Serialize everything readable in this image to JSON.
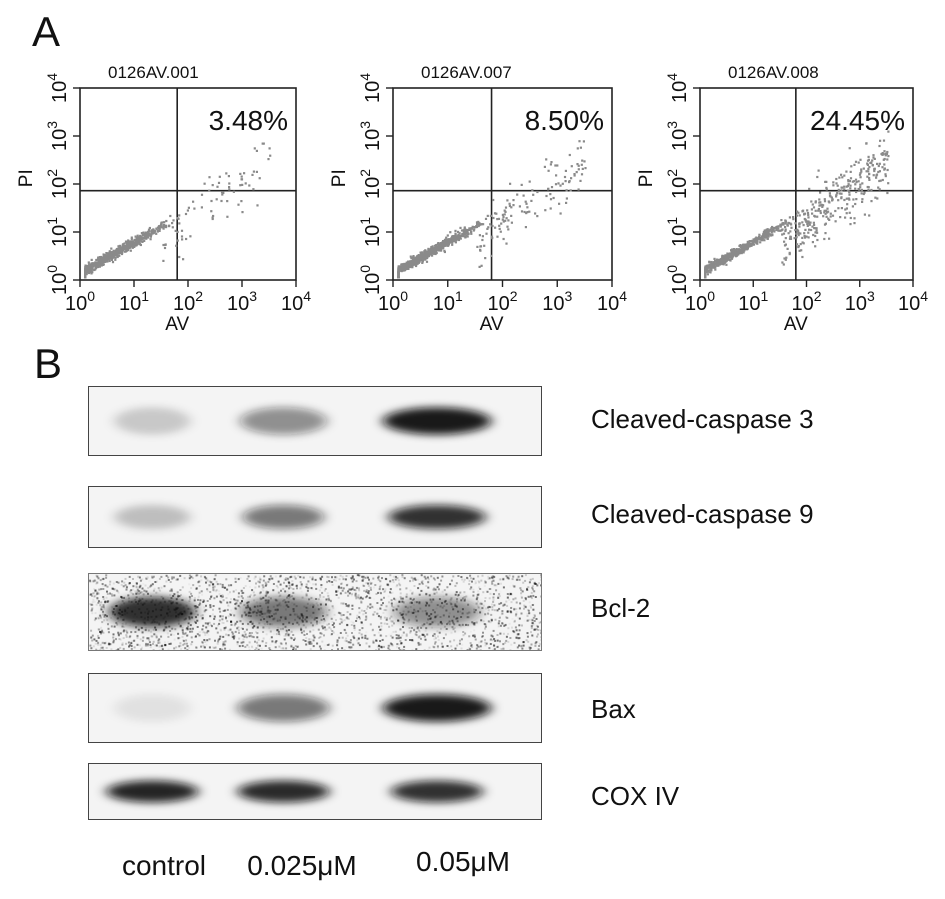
{
  "panel_a": {
    "letter": "A",
    "axis": {
      "x_label": "AV",
      "y_label": "PI",
      "tick_base": "10",
      "tick_exponents": [
        "0",
        "1",
        "2",
        "3",
        "4"
      ]
    },
    "plots": [
      {
        "sample_id": "0126AV.001",
        "percent_label": "3.48%",
        "upper_right_percent": 3.48
      },
      {
        "sample_id": "0126AV.007",
        "percent_label": "8.50%",
        "upper_right_percent": 8.5
      },
      {
        "sample_id": "0126AV.008",
        "percent_label": "24.45%",
        "upper_right_percent": 24.45
      }
    ]
  },
  "panel_b": {
    "letter": "B",
    "rows": [
      {
        "label": "Cleaved-caspase 3",
        "band_intensity": [
          0.18,
          0.45,
          0.95
        ],
        "band_spread": [
          0.7,
          0.8,
          1.0
        ]
      },
      {
        "label": "Cleaved-caspase 9",
        "band_intensity": [
          0.22,
          0.55,
          0.85
        ],
        "band_spread": [
          0.7,
          0.75,
          0.9
        ]
      },
      {
        "label": "Bcl-2",
        "band_intensity": [
          0.85,
          0.55,
          0.45
        ],
        "band_spread": [
          0.8,
          0.8,
          0.8
        ],
        "noisy": true
      },
      {
        "label": "Bax",
        "band_intensity": [
          0.08,
          0.55,
          0.95
        ],
        "band_spread": [
          0.7,
          0.85,
          1.0
        ]
      },
      {
        "label": "COX IV",
        "band_intensity": [
          0.9,
          0.88,
          0.85
        ],
        "band_spread": [
          0.85,
          0.85,
          0.85
        ]
      }
    ],
    "lanes": [
      "control",
      "0.025μM",
      "0.05μM"
    ]
  }
}
